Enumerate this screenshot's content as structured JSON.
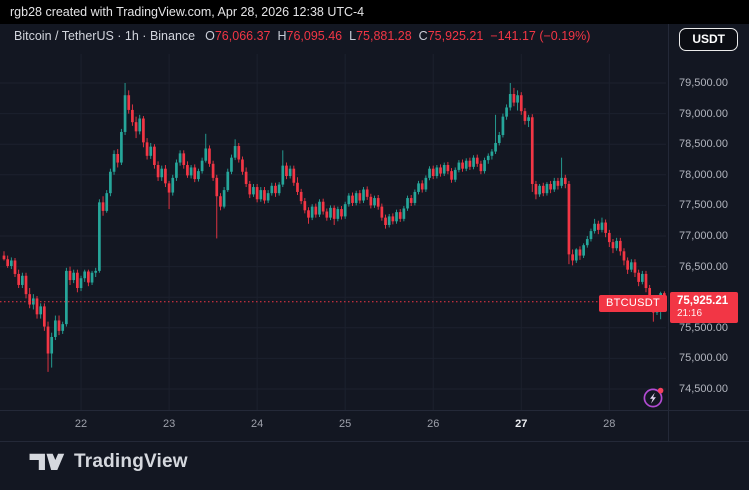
{
  "top_bar": {
    "attribution": "rgb28 created with TradingView.com, Apr 28, 2026 12:38 UTC-4"
  },
  "header": {
    "symbol_title": "Bitcoin / TetherUS · 1h · Binance",
    "ohlc": {
      "o_label": "O",
      "o": "76,066.37",
      "h_label": "H",
      "h": "76,095.46",
      "l_label": "L",
      "l": "75,881.28",
      "c_label": "C",
      "c": "75,925.21",
      "change": "−141.17 (−0.19%)"
    },
    "currency_button": "USDT"
  },
  "price_label": {
    "symbol": "BTCUSDT",
    "price": "75,925.21",
    "countdown": "21:16"
  },
  "footer": {
    "brand": "TradingView"
  },
  "colors": {
    "up": "#26a69a",
    "down": "#f23645",
    "accent_red": "#f23645",
    "background": "#131722",
    "grid": "#1c212e",
    "axis_text": "#b2b5be",
    "text": "#d1d4dc",
    "purple": "#b24bd3"
  },
  "price_axis": {
    "labels": [
      {
        "text": "79,500.00",
        "price": 79500
      },
      {
        "text": "79,000.00",
        "price": 79000
      },
      {
        "text": "78,500.00",
        "price": 78500
      },
      {
        "text": "78,000.00",
        "price": 78000
      },
      {
        "text": "77,500.00",
        "price": 77500
      },
      {
        "text": "77,000.00",
        "price": 77000
      },
      {
        "text": "76,500.00",
        "price": 76500
      },
      {
        "text": "76,000.00",
        "price": 76000
      },
      {
        "text": "75,500.00",
        "price": 75500
      },
      {
        "text": "75,000.00",
        "price": 75000
      },
      {
        "text": "74,500.00",
        "price": 74500
      }
    ]
  },
  "time_axis": {
    "ticks": [
      {
        "label": "22",
        "index": 21,
        "bold": false
      },
      {
        "label": "23",
        "index": 45,
        "bold": false
      },
      {
        "label": "24",
        "index": 69,
        "bold": false
      },
      {
        "label": "25",
        "index": 93,
        "bold": false
      },
      {
        "label": "26",
        "index": 117,
        "bold": false
      },
      {
        "label": "27",
        "index": 141,
        "bold": true
      },
      {
        "label": "28",
        "index": 165,
        "bold": false
      }
    ]
  },
  "chart_data": {
    "type": "candlestick",
    "symbol": "BTCUSDT",
    "exchange": "Binance",
    "interval": "1h",
    "title": "Bitcoin / TetherUS · 1h · Binance",
    "current_price": 75925.21,
    "price_line_price": 75925.21,
    "y_axis": {
      "min": 74500,
      "max": 79500,
      "step": 500,
      "grid": true
    },
    "x_dates": [
      "22",
      "23",
      "24",
      "25",
      "26",
      "27",
      "28"
    ],
    "candles_format": [
      "open",
      "high",
      "low",
      "close"
    ],
    "candles": [
      [
        76680,
        76750,
        76600,
        76620
      ],
      [
        76620,
        76680,
        76480,
        76510
      ],
      [
        76510,
        76650,
        76460,
        76600
      ],
      [
        76600,
        76640,
        76330,
        76380
      ],
      [
        76380,
        76450,
        76150,
        76200
      ],
      [
        76200,
        76400,
        76150,
        76350
      ],
      [
        76350,
        76400,
        75980,
        76050
      ],
      [
        76050,
        76150,
        75820,
        75880
      ],
      [
        75880,
        76050,
        75800,
        75980
      ],
      [
        75980,
        76020,
        75650,
        75720
      ],
      [
        75720,
        75900,
        75650,
        75850
      ],
      [
        75850,
        75900,
        75450,
        75520
      ],
      [
        75520,
        75600,
        74780,
        75080
      ],
      [
        75080,
        75420,
        74850,
        75350
      ],
      [
        75350,
        75700,
        75300,
        75620
      ],
      [
        75620,
        75700,
        75380,
        75450
      ],
      [
        75450,
        75600,
        75400,
        75560
      ],
      [
        75560,
        76480,
        75520,
        76430
      ],
      [
        76430,
        76500,
        76200,
        76280
      ],
      [
        76280,
        76450,
        76230,
        76400
      ],
      [
        76400,
        76450,
        76080,
        76150
      ],
      [
        76150,
        76350,
        76100,
        76310
      ],
      [
        76310,
        76450,
        76250,
        76420
      ],
      [
        76420,
        76450,
        76180,
        76240
      ],
      [
        76240,
        76430,
        76200,
        76400
      ],
      [
        76400,
        76480,
        76330,
        76430
      ],
      [
        76430,
        77600,
        76400,
        77550
      ],
      [
        77550,
        77650,
        77330,
        77410
      ],
      [
        77410,
        77750,
        77380,
        77700
      ],
      [
        77700,
        78100,
        77650,
        78050
      ],
      [
        78050,
        78400,
        78000,
        78340
      ],
      [
        78340,
        78420,
        78120,
        78200
      ],
      [
        78200,
        78750,
        78160,
        78700
      ],
      [
        78700,
        79500,
        78650,
        79300
      ],
      [
        79300,
        79380,
        79000,
        79060
      ],
      [
        79060,
        79150,
        78800,
        78860
      ],
      [
        78860,
        78950,
        78600,
        78710
      ],
      [
        78710,
        78980,
        78660,
        78920
      ],
      [
        78920,
        78960,
        78450,
        78530
      ],
      [
        78530,
        78600,
        78250,
        78310
      ],
      [
        78310,
        78520,
        78260,
        78460
      ],
      [
        78460,
        78500,
        78100,
        78160
      ],
      [
        78160,
        78220,
        77900,
        77960
      ],
      [
        77960,
        78150,
        77900,
        78100
      ],
      [
        78100,
        78160,
        77800,
        77860
      ],
      [
        77860,
        77900,
        77440,
        77710
      ],
      [
        77710,
        78000,
        77660,
        77950
      ],
      [
        77950,
        78250,
        77900,
        78200
      ],
      [
        78200,
        78400,
        78150,
        78350
      ],
      [
        78350,
        78400,
        78100,
        78160
      ],
      [
        78160,
        78220,
        77950,
        77990
      ],
      [
        77990,
        78160,
        77940,
        78120
      ],
      [
        78120,
        78170,
        77880,
        77930
      ],
      [
        77930,
        78100,
        77890,
        78060
      ],
      [
        78060,
        78280,
        78020,
        78230
      ],
      [
        78230,
        78670,
        78200,
        78430
      ],
      [
        78430,
        78480,
        78130,
        78180
      ],
      [
        78180,
        78230,
        77900,
        77950
      ],
      [
        77950,
        78000,
        76960,
        77650
      ],
      [
        77650,
        77700,
        77420,
        77480
      ],
      [
        77480,
        77800,
        77450,
        77750
      ],
      [
        77750,
        78100,
        77720,
        78050
      ],
      [
        78050,
        78330,
        78010,
        78280
      ],
      [
        78280,
        78580,
        78240,
        78470
      ],
      [
        78470,
        78520,
        78200,
        78250
      ],
      [
        78250,
        78300,
        78000,
        78050
      ],
      [
        78050,
        78120,
        77800,
        77850
      ],
      [
        77850,
        77900,
        77620,
        77680
      ],
      [
        77680,
        77850,
        77640,
        77800
      ],
      [
        77800,
        77850,
        77550,
        77600
      ],
      [
        77600,
        77800,
        77560,
        77750
      ],
      [
        77750,
        77800,
        77530,
        77580
      ],
      [
        77580,
        77750,
        77540,
        77700
      ],
      [
        77700,
        77870,
        77660,
        77820
      ],
      [
        77820,
        77870,
        77640,
        77700
      ],
      [
        77700,
        77880,
        77660,
        77840
      ],
      [
        77840,
        78400,
        77800,
        78150
      ],
      [
        78150,
        78200,
        77930,
        77980
      ],
      [
        77980,
        78150,
        77940,
        78100
      ],
      [
        78100,
        78150,
        77820,
        77870
      ],
      [
        77870,
        77960,
        77670,
        77720
      ],
      [
        77720,
        77770,
        77520,
        77570
      ],
      [
        77570,
        77620,
        77370,
        77420
      ],
      [
        77420,
        77470,
        77200,
        77300
      ],
      [
        77300,
        77520,
        77260,
        77480
      ],
      [
        77480,
        77530,
        77300,
        77350
      ],
      [
        77350,
        77600,
        77310,
        77560
      ],
      [
        77560,
        77610,
        77350,
        77400
      ],
      [
        77400,
        77450,
        77250,
        77300
      ],
      [
        77300,
        77500,
        77260,
        77460
      ],
      [
        77460,
        77500,
        77180,
        77280
      ],
      [
        77280,
        77480,
        77240,
        77440
      ],
      [
        77440,
        77490,
        77270,
        77320
      ],
      [
        77320,
        77560,
        77280,
        77520
      ],
      [
        77520,
        77700,
        77480,
        77660
      ],
      [
        77660,
        77710,
        77490,
        77540
      ],
      [
        77540,
        77740,
        77500,
        77700
      ],
      [
        77700,
        77750,
        77530,
        77580
      ],
      [
        77580,
        77800,
        77540,
        77760
      ],
      [
        77760,
        77810,
        77590,
        77640
      ],
      [
        77640,
        77690,
        77450,
        77500
      ],
      [
        77500,
        77660,
        77460,
        77620
      ],
      [
        77620,
        77670,
        77430,
        77480
      ],
      [
        77480,
        77530,
        77250,
        77300
      ],
      [
        77300,
        77350,
        77120,
        77180
      ],
      [
        77180,
        77360,
        77140,
        77320
      ],
      [
        77320,
        77370,
        77190,
        77240
      ],
      [
        77240,
        77430,
        77200,
        77390
      ],
      [
        77390,
        77440,
        77230,
        77280
      ],
      [
        77280,
        77490,
        77240,
        77450
      ],
      [
        77450,
        77660,
        77410,
        77620
      ],
      [
        77620,
        77670,
        77490,
        77540
      ],
      [
        77540,
        77760,
        77500,
        77720
      ],
      [
        77720,
        77900,
        77680,
        77860
      ],
      [
        77860,
        77910,
        77710,
        77760
      ],
      [
        77760,
        77990,
        77720,
        77950
      ],
      [
        77950,
        78140,
        77910,
        78100
      ],
      [
        78100,
        78150,
        77930,
        77980
      ],
      [
        77980,
        78160,
        77940,
        78120
      ],
      [
        78120,
        78170,
        77970,
        78020
      ],
      [
        78020,
        78200,
        77980,
        78160
      ],
      [
        78160,
        78210,
        78010,
        78060
      ],
      [
        78060,
        78110,
        77870,
        77920
      ],
      [
        77920,
        78120,
        77880,
        78080
      ],
      [
        78080,
        78240,
        78040,
        78200
      ],
      [
        78200,
        78250,
        78050,
        78100
      ],
      [
        78100,
        78270,
        78060,
        78230
      ],
      [
        78230,
        78280,
        78080,
        78130
      ],
      [
        78130,
        78320,
        78090,
        78280
      ],
      [
        78280,
        78330,
        78130,
        78180
      ],
      [
        78180,
        78230,
        78010,
        78060
      ],
      [
        78060,
        78280,
        78020,
        78240
      ],
      [
        78240,
        78350,
        78180,
        78310
      ],
      [
        78310,
        78420,
        78250,
        78380
      ],
      [
        78380,
        78980,
        78340,
        78520
      ],
      [
        78520,
        78700,
        78480,
        78650
      ],
      [
        78650,
        79000,
        78610,
        78950
      ],
      [
        78950,
        79150,
        78900,
        79100
      ],
      [
        79100,
        79500,
        79050,
        79320
      ],
      [
        79320,
        79420,
        79120,
        79180
      ],
      [
        79180,
        79380,
        79050,
        79300
      ],
      [
        79300,
        79350,
        78980,
        79040
      ],
      [
        79040,
        79090,
        78820,
        78880
      ],
      [
        78880,
        78980,
        78780,
        78940
      ],
      [
        78940,
        78990,
        77720,
        77850
      ],
      [
        77850,
        77900,
        77600,
        77680
      ],
      [
        77680,
        77850,
        77640,
        77820
      ],
      [
        77820,
        77870,
        77650,
        77700
      ],
      [
        77700,
        77880,
        77660,
        77850
      ],
      [
        77850,
        77900,
        77700,
        77760
      ],
      [
        77760,
        77950,
        77720,
        77900
      ],
      [
        77900,
        77950,
        77760,
        77820
      ],
      [
        77820,
        78280,
        77780,
        77950
      ],
      [
        77950,
        78000,
        77780,
        77850
      ],
      [
        77850,
        77900,
        76540,
        76700
      ],
      [
        76700,
        76780,
        76520,
        76600
      ],
      [
        76600,
        76800,
        76560,
        76780
      ],
      [
        76780,
        76830,
        76610,
        76680
      ],
      [
        76680,
        76880,
        76640,
        76850
      ],
      [
        76850,
        77000,
        76810,
        76950
      ],
      [
        76950,
        77120,
        76910,
        77080
      ],
      [
        77080,
        77280,
        77040,
        77200
      ],
      [
        77200,
        77250,
        77030,
        77100
      ],
      [
        77100,
        77300,
        77060,
        77220
      ],
      [
        77220,
        77270,
        76980,
        77050
      ],
      [
        77050,
        77100,
        76820,
        76900
      ],
      [
        76900,
        76950,
        76720,
        76800
      ],
      [
        76800,
        76970,
        76760,
        76920
      ],
      [
        76920,
        76970,
        76680,
        76750
      ],
      [
        76750,
        76800,
        76520,
        76600
      ],
      [
        76600,
        76650,
        76380,
        76450
      ],
      [
        76450,
        76620,
        76410,
        76570
      ],
      [
        76570,
        76620,
        76330,
        76400
      ],
      [
        76400,
        76450,
        76180,
        76250
      ],
      [
        76250,
        76430,
        76210,
        76380
      ],
      [
        76380,
        76430,
        76080,
        76150
      ],
      [
        76150,
        76200,
        75840,
        75900
      ],
      [
        75900,
        75950,
        75600,
        75750
      ],
      [
        75750,
        76010,
        75710,
        75980
      ],
      [
        75980,
        76090,
        75640,
        76066
      ],
      [
        76066.37,
        76095.46,
        75881.28,
        75925.21
      ]
    ]
  }
}
